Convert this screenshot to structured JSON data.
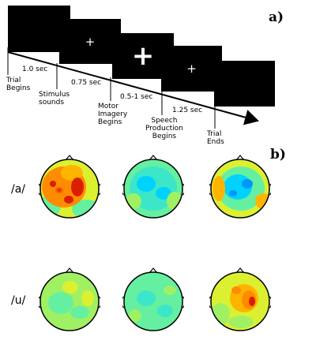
{
  "panels": {
    "a_label": "a)",
    "b_label": "b)"
  },
  "timeline": {
    "events": [
      "Trial\nBegins",
      "Stimulus\nsounds",
      "Motor\nImagery\nBegins",
      "Speech\nProduction\nBegins",
      "Trial\nEnds"
    ],
    "durations": [
      "1.0 sec",
      "0.75 sec",
      "0.5-1 sec",
      "1.25 sec"
    ],
    "screens": [
      {
        "symbol": ""
      },
      {
        "symbol": "+"
      },
      {
        "symbol": "+"
      },
      {
        "symbol": "+"
      },
      {
        "symbol": ""
      }
    ]
  },
  "topomaps": {
    "rows": [
      {
        "label": "/a/"
      },
      {
        "label": "/u/"
      }
    ]
  },
  "colors": {
    "screen": "#000000",
    "fixation": "#ffffff",
    "colormap": [
      "#0000c8",
      "#00d2ff",
      "#64f0a0",
      "#dcf032",
      "#ff8c00",
      "#dc1e00"
    ]
  }
}
